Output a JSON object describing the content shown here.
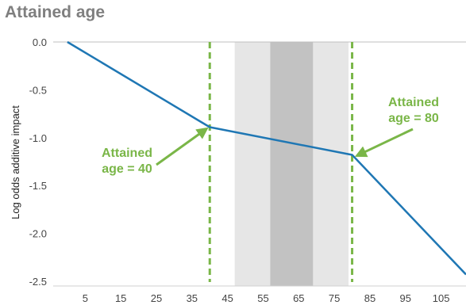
{
  "chart_data": {
    "type": "line",
    "title": "Attained age",
    "ylabel": "Log odds additive impact",
    "xlabel": "",
    "xlim": [
      -4,
      112
    ],
    "ylim": [
      -2.5,
      0.0
    ],
    "x_ticks": [
      5,
      15,
      25,
      35,
      45,
      55,
      65,
      75,
      85,
      95,
      105
    ],
    "y_ticks": [
      0.0,
      -0.5,
      -1.0,
      -1.5,
      -2.0,
      -2.5
    ],
    "y_tick_labels": [
      "0.0",
      "-0.5",
      "-1.0",
      "-1.5",
      "-2.0",
      "-2.5"
    ],
    "grid": false,
    "series": [
      {
        "x": [
          0,
          40,
          80,
          112
        ],
        "y": [
          0.0,
          -0.89,
          -1.18,
          -2.43
        ],
        "color": "#1f77b4"
      }
    ],
    "shaded_regions": [
      {
        "x0": 47,
        "x1": 79,
        "color": "#e6e6e6"
      },
      {
        "x0": 57,
        "x1": 69,
        "color": "#c2c2c2"
      }
    ],
    "vlines": [
      {
        "x": 40,
        "color": "#7ab648",
        "style": "dashed"
      },
      {
        "x": 80,
        "color": "#7ab648",
        "style": "dashed"
      }
    ],
    "annotations": [
      {
        "lines": [
          "Attained",
          "age = 40"
        ],
        "point": [
          40,
          -0.89
        ],
        "color": "#7ab648"
      },
      {
        "lines": [
          "Attained",
          "age = 80"
        ],
        "point": [
          80,
          -1.18
        ],
        "color": "#7ab648"
      }
    ]
  }
}
